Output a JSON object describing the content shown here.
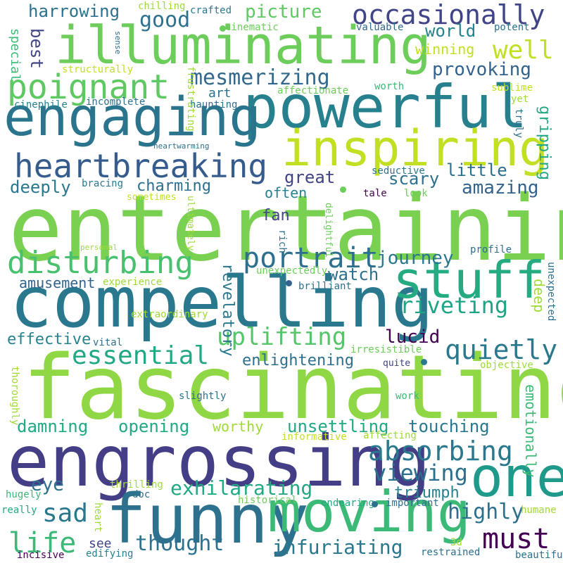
{
  "words": [
    "entertaining",
    "fascinating",
    "compelling",
    "engrossing",
    "powerful",
    "illuminating",
    "engaging",
    "funny",
    "moving",
    "inspiring",
    "one",
    "stuff",
    "heartbreaking",
    "poignant",
    "disturbing",
    "portrait",
    "absorbing",
    "essential",
    "occasionally",
    "quietly",
    "riveting",
    "uplifting",
    "mesmerizing",
    "picture",
    "harrowing",
    "must",
    "sad",
    "life",
    "viewing",
    "exhilarating",
    "infuriating",
    "highly",
    "thought",
    "good",
    "well",
    "provoking",
    "world",
    "amazing",
    "charming",
    "best",
    "great",
    "scary",
    "little",
    "gripping",
    "deeply",
    "journey",
    "revelatory",
    "lucid",
    "watch",
    "damning",
    "opening",
    "unsettling",
    "touching",
    "emotionally",
    "enlightening",
    "effective",
    "triumph",
    "eye",
    "amusement",
    "fan",
    "often",
    "worthy",
    "deep",
    "art",
    "winning",
    "see",
    "special",
    "crafted",
    "cinematic",
    "chilling",
    "valuable",
    "potent",
    "structurally",
    "affectionate",
    "worth",
    "sublime",
    "cinephile",
    "incomplete",
    "haunting",
    "frustrating",
    "yet",
    "truly",
    "heartwarming",
    "seductive",
    "bracing",
    "sometimes",
    "tale",
    "look",
    "delightful",
    "ultimately",
    "rich",
    "personal",
    "profile",
    "unexpectedly",
    "brilliant",
    "experience",
    "unexpected",
    "extraordinary",
    "vital",
    "irresistible",
    "quite",
    "objective",
    "thoroughly",
    "slightly",
    "work",
    "informative",
    "affecting",
    "hugely",
    "thrilling",
    "doc",
    "historical",
    "endearing",
    "important",
    "humane",
    "really",
    "heart",
    "restrained",
    "3d",
    "incisive",
    "edifying",
    "beautiful",
    "sense"
  ]
}
